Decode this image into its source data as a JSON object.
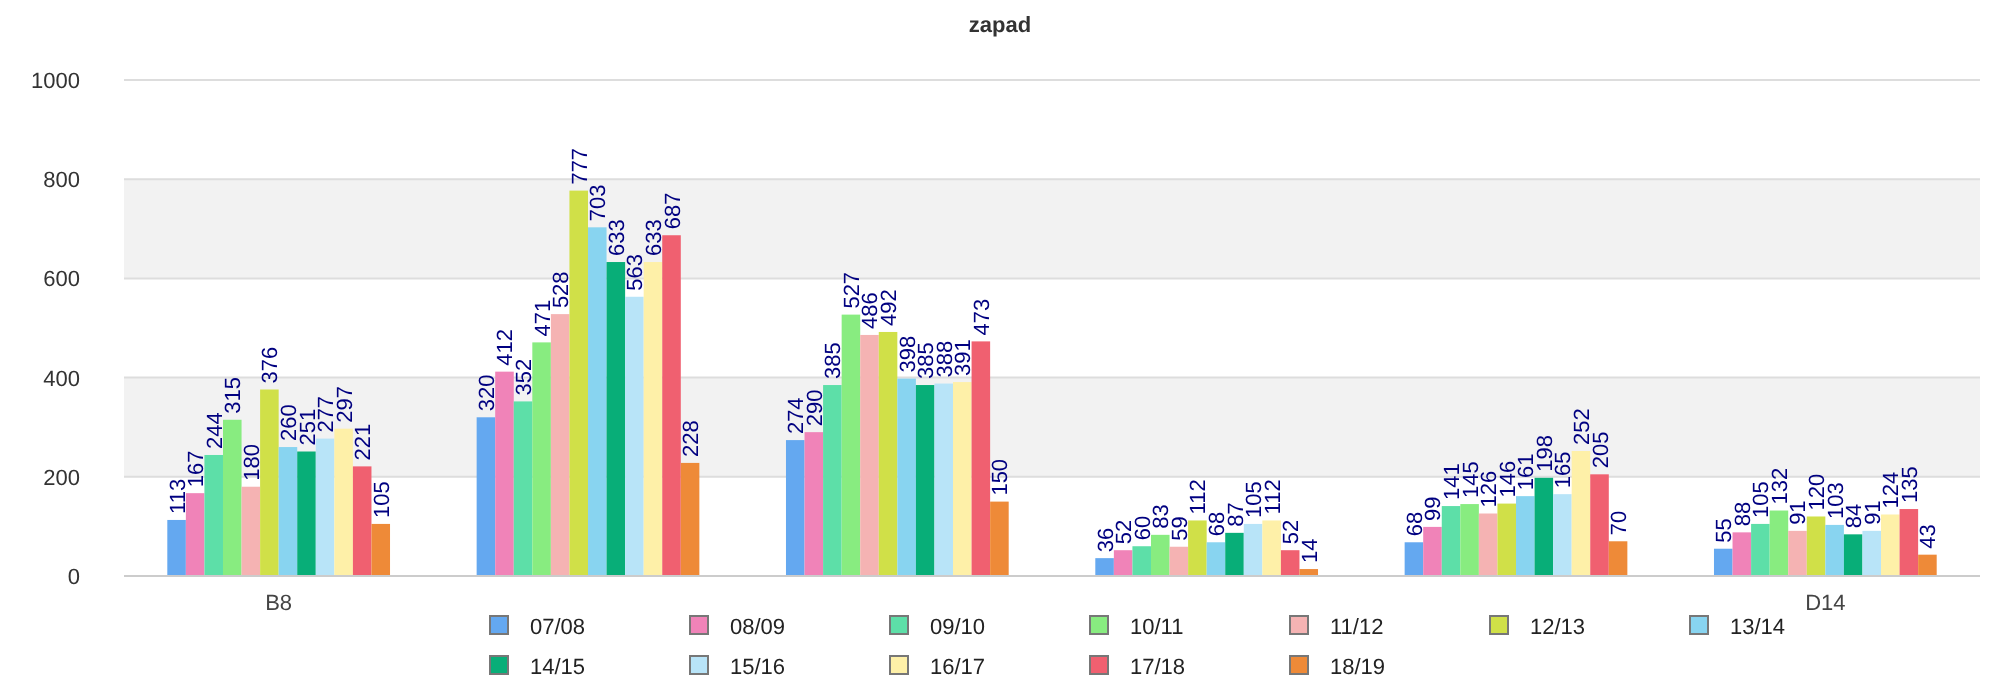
{
  "chart_data": {
    "type": "bar",
    "title": "zapad",
    "categories": [
      "B8",
      null,
      null,
      null,
      null,
      "D14"
    ],
    "ylim": [
      0,
      1000
    ],
    "yticks": [
      0,
      200,
      400,
      600,
      800,
      1000
    ],
    "grid": "y",
    "legend": "bottom",
    "data_labels": true,
    "series": [
      {
        "name": "07/08",
        "color": "#64a8f0",
        "values": [
          113,
          320,
          274,
          36,
          68,
          55
        ]
      },
      {
        "name": "08/09",
        "color": "#f083b8",
        "values": [
          167,
          412,
          290,
          52,
          99,
          88
        ]
      },
      {
        "name": "09/10",
        "color": "#5ddfa8",
        "values": [
          244,
          352,
          385,
          60,
          141,
          105
        ]
      },
      {
        "name": "10/11",
        "color": "#88ec80",
        "values": [
          315,
          471,
          527,
          83,
          145,
          132
        ]
      },
      {
        "name": "11/12",
        "color": "#f5b3b3",
        "values": [
          180,
          528,
          486,
          59,
          126,
          91
        ]
      },
      {
        "name": "12/13",
        "color": "#d0e048",
        "values": [
          376,
          777,
          492,
          112,
          146,
          120
        ]
      },
      {
        "name": "13/14",
        "color": "#88d4f0",
        "values": [
          260,
          703,
          398,
          68,
          161,
          103
        ]
      },
      {
        "name": "14/15",
        "color": "#08ae78",
        "values": [
          251,
          633,
          385,
          87,
          198,
          84
        ]
      },
      {
        "name": "15/16",
        "color": "#b8e4f8",
        "values": [
          277,
          563,
          388,
          105,
          165,
          91
        ]
      },
      {
        "name": "16/17",
        "color": "#fef0a8",
        "values": [
          297,
          633,
          391,
          112,
          252,
          124
        ]
      },
      {
        "name": "17/18",
        "color": "#f06070",
        "values": [
          221,
          687,
          473,
          52,
          205,
          135
        ]
      },
      {
        "name": "18/19",
        "color": "#ee8a38",
        "values": [
          105,
          228,
          150,
          14,
          70,
          43
        ]
      }
    ]
  }
}
